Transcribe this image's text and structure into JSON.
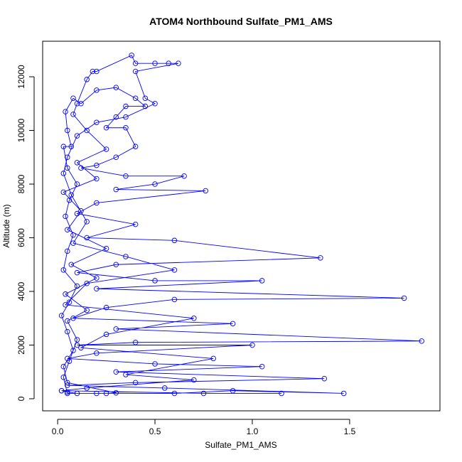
{
  "chart_data": {
    "type": "line",
    "title": "ATOM4 Northbound Sulfate_PM1_AMS",
    "x_label": "Sulfate_PM1_AMS",
    "y_label": "Altitude (m)",
    "color": "#0000ff",
    "markers": true,
    "xlim": [
      -0.077,
      1.964
    ],
    "ylim": [
      -450,
      13325
    ],
    "xticks": [
      {
        "value": 0,
        "label": "0.0"
      },
      0.5,
      {
        "value": 1,
        "label": "1.0"
      },
      1.5
    ],
    "yticks": [
      0,
      2000,
      4000,
      6000,
      8000,
      10000,
      12000
    ],
    "x": [
      0.02,
      0.05,
      0.1,
      0.25,
      0.3,
      0.05,
      0.03,
      0.08,
      0.05,
      0.02,
      0.06,
      0.1,
      0.03,
      0.05,
      0.08,
      0.04,
      0.06,
      0.1,
      0.05,
      0.03,
      0.07,
      0.05,
      0.04,
      0.08,
      0.12,
      0.2,
      0.3,
      0.4,
      0.45,
      0.35,
      0.3,
      0.25,
      0.35,
      0.4,
      0.3,
      0.2,
      0.12,
      0.35,
      0.65,
      0.5,
      0.3,
      0.76,
      0.2,
      0.1,
      0.4,
      0.15,
      0.6,
      1.35,
      0.3,
      0.1,
      0.5,
      1.05,
      0.2,
      1.78,
      0.6,
      0.25,
      0.08,
      0.9,
      0.3,
      1.87,
      0.4,
      0.1,
      1.0,
      0.2,
      0.05,
      0.5,
      1.05,
      0.3,
      1.37,
      0.4,
      0.05,
      0.55,
      1.47,
      0.9,
      0.6,
      0.2,
      0.05,
      0.03,
      0.06,
      0.1,
      0.05,
      0.15,
      0.04,
      0.2,
      0.07,
      0.25,
      0.05,
      0.12,
      0.03,
      0.2,
      0.1,
      0.25,
      0.15,
      0.08,
      0.1,
      0.15,
      0.18,
      0.2,
      0.38,
      0.4,
      0.5,
      0.57,
      0.62,
      0.4,
      0.45,
      0.5,
      0.35,
      0.2,
      0.1,
      0.05,
      0.03,
      0.07,
      0.15,
      0.08,
      0.35,
      0.6,
      0.15,
      0.04,
      0.7,
      0.25,
      0.12,
      0.8,
      0.35,
      0.7,
      0.15,
      0.02,
      0.75,
      1.15
    ],
    "values": [
      300,
      250,
      200,
      200,
      220,
      600,
      1200,
      1800,
      2500,
      3100,
      3600,
      4200,
      4800,
      5500,
      6100,
      6800,
      7400,
      8000,
      8600,
      9400,
      9400,
      10000,
      10700,
      11200,
      11000,
      11500,
      11600,
      11200,
      10900,
      10900,
      10500,
      10100,
      10100,
      9400,
      9000,
      8700,
      8600,
      8300,
      8300,
      8000,
      7800,
      7750,
      7300,
      6900,
      6500,
      6000,
      5900,
      5250,
      5000,
      4700,
      4400,
      4400,
      4100,
      3750,
      3700,
      3400,
      3000,
      2800,
      2600,
      2150,
      2100,
      2000,
      2000,
      1700,
      1500,
      1300,
      1200,
      1000,
      750,
      600,
      500,
      400,
      200,
      300,
      200,
      200,
      200,
      800,
      1400,
      2200,
      2900,
      3300,
      3900,
      4500,
      5000,
      5600,
      6300,
      7000,
      7700,
      8200,
      8800,
      9300,
      10000,
      10600,
      11000,
      11900,
      12200,
      12200,
      12800,
      12500,
      12500,
      12500,
      12500,
      12200,
      11200,
      11000,
      10500,
      10300,
      9800,
      9000,
      8400,
      7600,
      6600,
      5800,
      5300,
      4800,
      4300,
      3500,
      3000,
      2400,
      1900,
      1500,
      900,
      700,
      400,
      300,
      200,
      200
    ]
  }
}
